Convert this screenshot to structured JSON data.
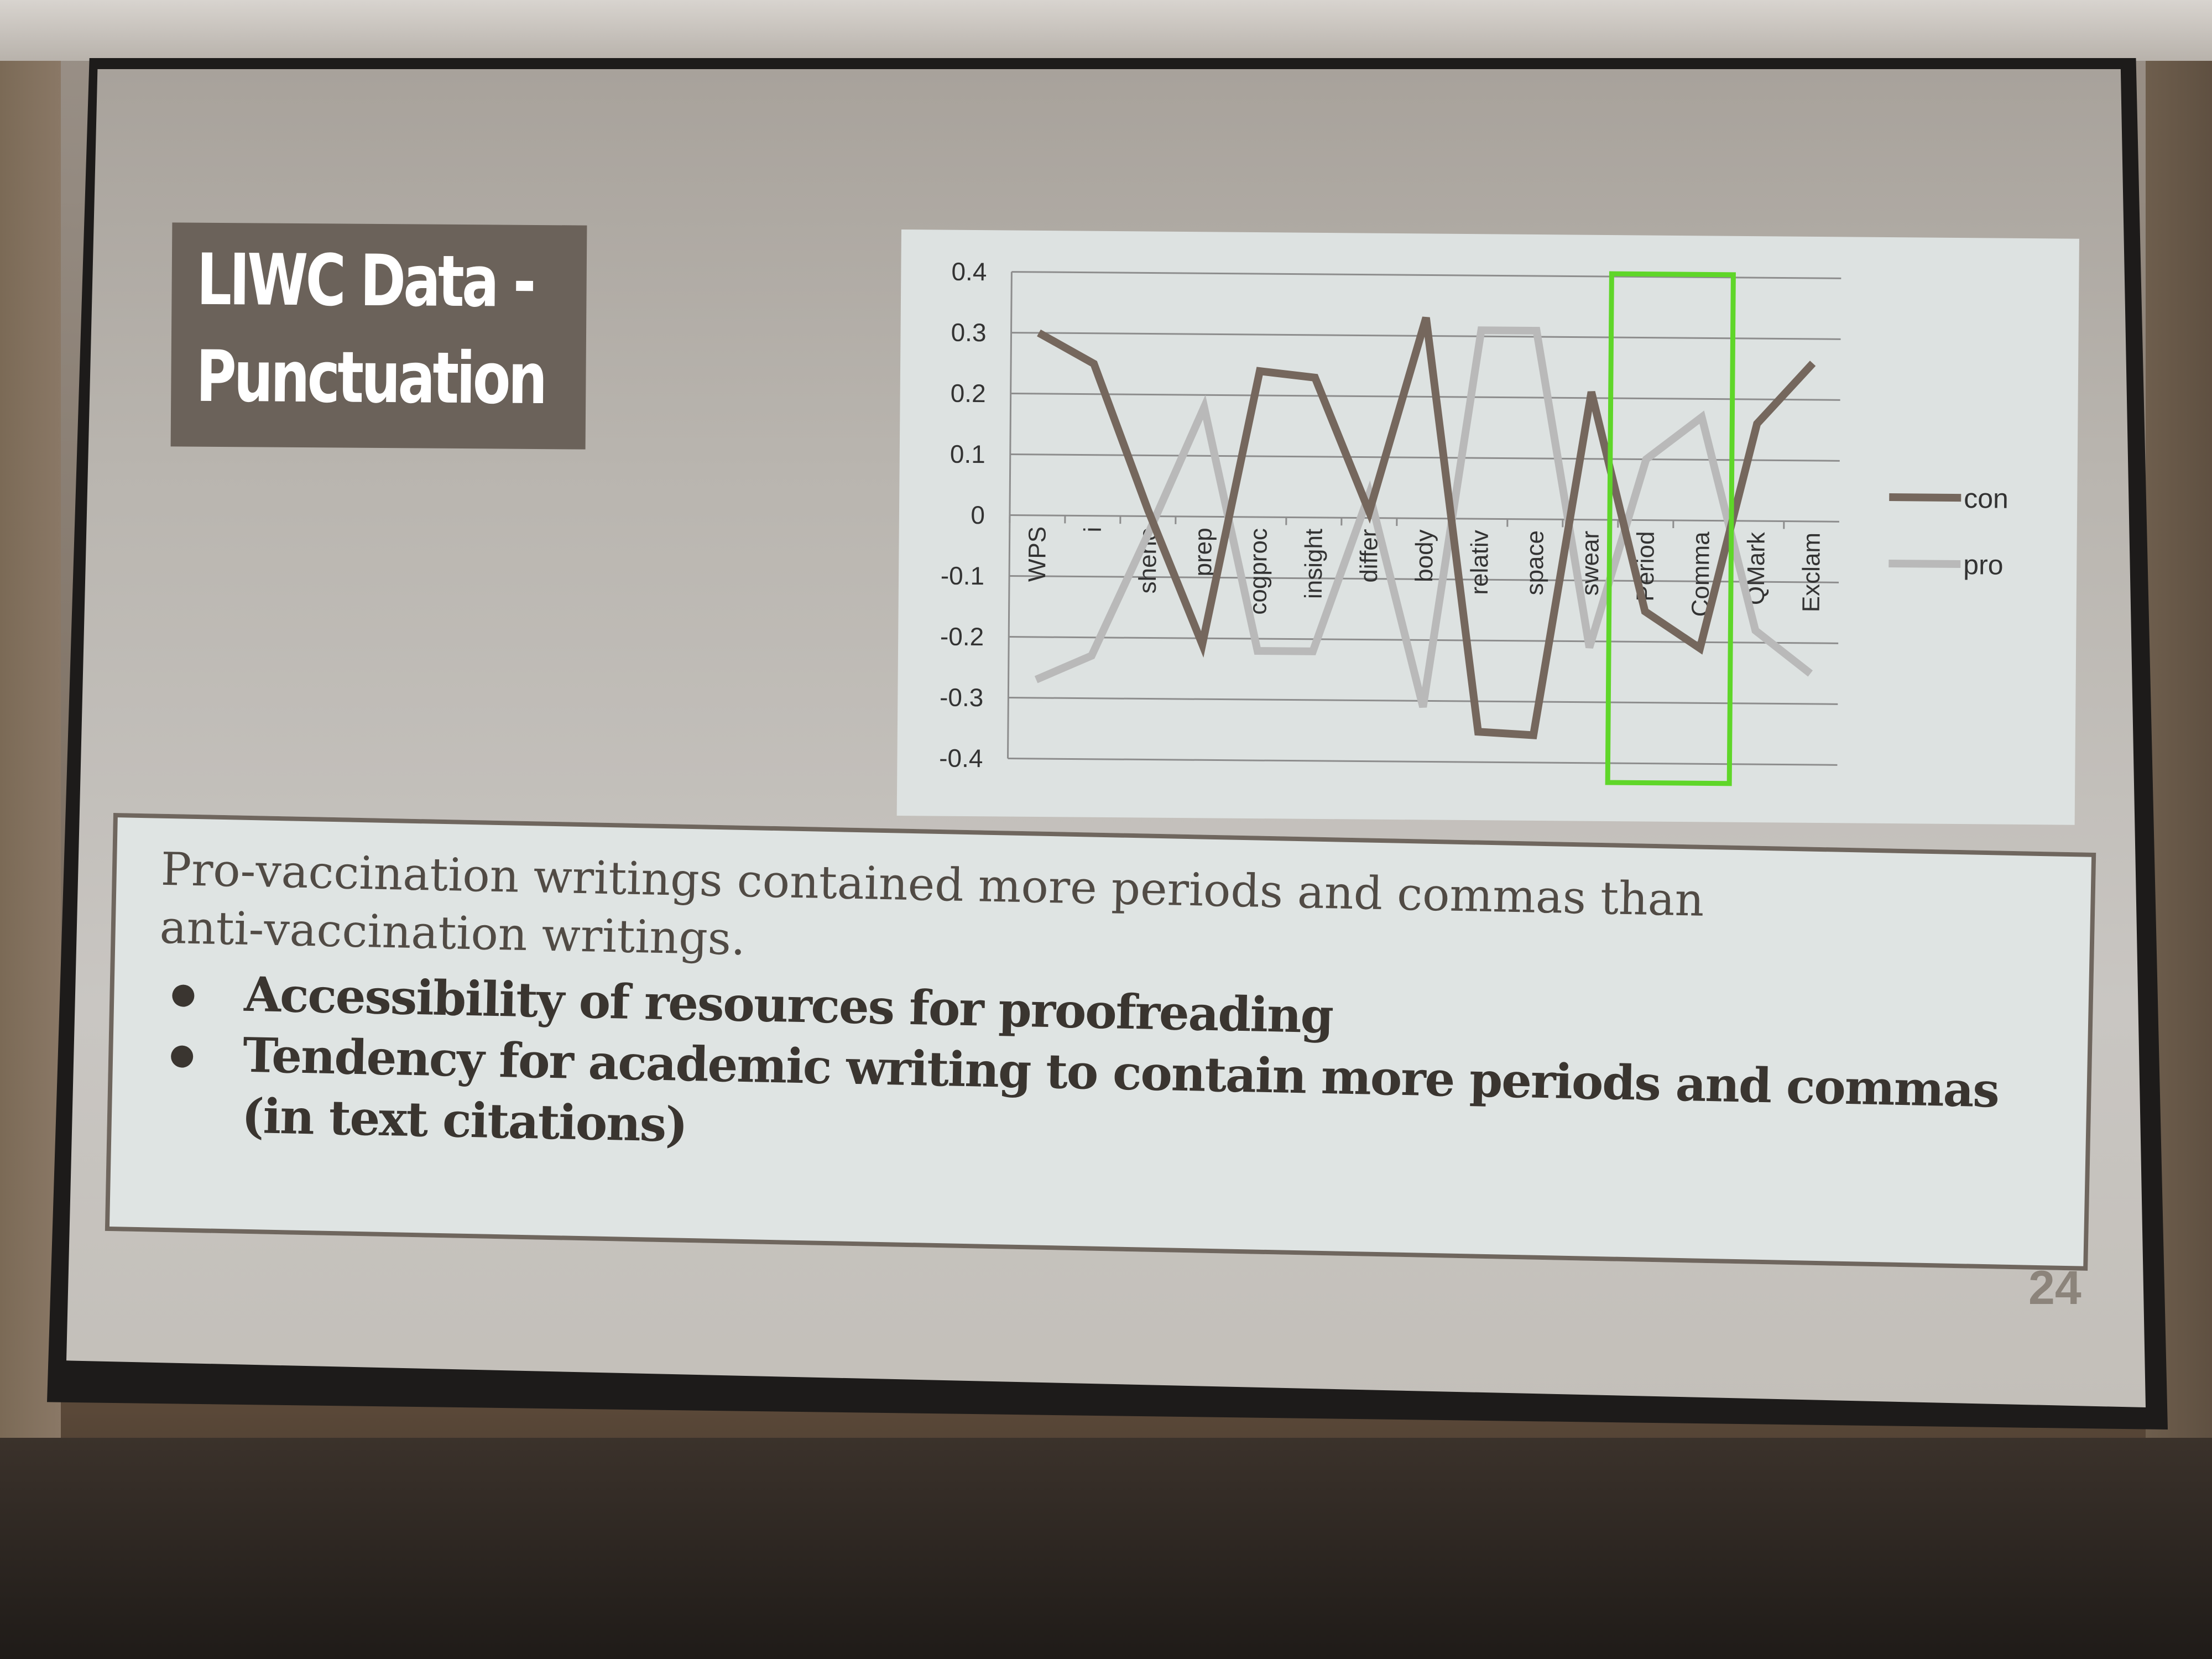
{
  "slide": {
    "title_line1": "LIWC Data -",
    "title_line2": "Punctuation",
    "paragraph_line1": "Pro-vaccination writings contained more periods and commas than",
    "paragraph_line2": "anti-vaccination writings.",
    "bullets": [
      "Accessibility of resources for proofreading",
      "Tendency for academic writing to contain more periods and commas",
      "(in text citations)"
    ],
    "page_number": "24"
  },
  "colors": {
    "con": "#75675d",
    "pro": "#b9b9b9",
    "highlight": "#5fd629",
    "title_bg": "#6b625a"
  },
  "chart_data": {
    "type": "line",
    "categories": [
      "WPS",
      "i",
      "shehe",
      "prep",
      "cogproc",
      "insight",
      "differ",
      "body",
      "relativ",
      "space",
      "swear",
      "Period",
      "Comma",
      "QMark",
      "Exclam"
    ],
    "series": [
      {
        "name": "con",
        "values": [
          0.3,
          0.25,
          0.01,
          -0.21,
          0.24,
          0.23,
          0.01,
          0.33,
          -0.35,
          -0.355,
          0.21,
          -0.15,
          -0.21,
          0.16,
          0.26
        ]
      },
      {
        "name": "pro",
        "values": [
          -0.27,
          -0.23,
          -0.03,
          0.18,
          -0.22,
          -0.22,
          0.04,
          -0.31,
          0.31,
          0.31,
          -0.21,
          0.1,
          0.17,
          -0.18,
          -0.25
        ]
      }
    ],
    "y_ticks": [
      "0.4",
      "0.3",
      "0.2",
      "0.1",
      "0",
      "-0.1",
      "-0.2",
      "-0.3",
      "-0.4"
    ],
    "ylim": [
      -0.4,
      0.4
    ],
    "grid": true,
    "legend_position": "right",
    "highlighted_categories": [
      "Period",
      "Comma"
    ]
  }
}
